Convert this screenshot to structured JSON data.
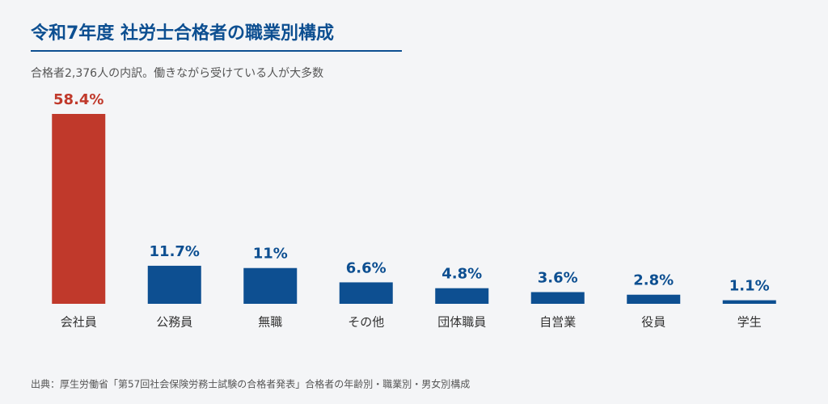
{
  "chart_data": {
    "type": "bar",
    "title": "令和7年度 社労士合格者の職業別構成",
    "subtitle": "合格者2,376人の内訳。働きながら受けている人が大多数",
    "source": "出典：厚生労働省「第57回社会保険労務士試験の合格者発表」合格者の年齢別・職業別・男女別構成",
    "categories": [
      "会社員",
      "公務員",
      "無職",
      "その他",
      "団体職員",
      "自営業",
      "役員",
      "学生"
    ],
    "values": [
      58.4,
      11.7,
      11,
      6.6,
      4.8,
      3.6,
      2.8,
      1.1
    ],
    "value_labels": [
      "58.4%",
      "11.7%",
      "11%",
      "6.6%",
      "4.8%",
      "3.6%",
      "2.8%",
      "1.1%"
    ],
    "colors": [
      "#c0392b",
      "#0d4f91",
      "#0d4f91",
      "#0d4f91",
      "#0d4f91",
      "#0d4f91",
      "#0d4f91",
      "#0d4f91"
    ]
  }
}
